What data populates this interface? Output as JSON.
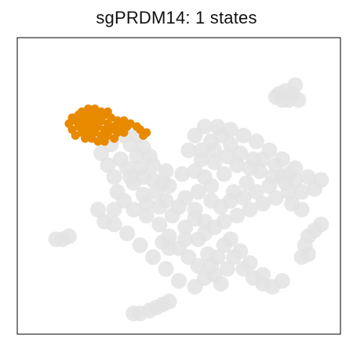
{
  "chart_data": {
    "type": "scatter",
    "title": "sgPRDM14: 1 states",
    "xlabel": "",
    "ylabel": "",
    "axes_ticks": false,
    "grid": false,
    "legend": "none",
    "colors": {
      "background_cells": "#e3e3e3",
      "highlight_cells": "#e88a00",
      "frame": "#000000"
    },
    "series": [
      {
        "name": "",
        "role": "background",
        "color": "#e3e3e3",
        "points": [
          [
            0.36,
            0.58
          ],
          [
            0.4,
            0.6
          ],
          [
            0.44,
            0.63
          ],
          [
            0.47,
            0.67
          ],
          [
            0.5,
            0.71
          ],
          [
            0.53,
            0.74
          ],
          [
            0.56,
            0.77
          ],
          [
            0.58,
            0.81
          ],
          [
            0.55,
            0.84
          ],
          [
            0.5,
            0.82
          ],
          [
            0.46,
            0.78
          ],
          [
            0.42,
            0.74
          ],
          [
            0.38,
            0.7
          ],
          [
            0.34,
            0.66
          ],
          [
            0.3,
            0.63
          ],
          [
            0.27,
            0.62
          ],
          [
            0.33,
            0.55
          ],
          [
            0.31,
            0.52
          ],
          [
            0.36,
            0.49
          ],
          [
            0.42,
            0.48
          ],
          [
            0.47,
            0.5
          ],
          [
            0.52,
            0.54
          ],
          [
            0.55,
            0.58
          ],
          [
            0.58,
            0.62
          ],
          [
            0.61,
            0.64
          ],
          [
            0.64,
            0.62
          ],
          [
            0.68,
            0.6
          ],
          [
            0.72,
            0.58
          ],
          [
            0.76,
            0.56
          ],
          [
            0.8,
            0.54
          ],
          [
            0.84,
            0.52
          ],
          [
            0.88,
            0.52
          ],
          [
            0.92,
            0.51
          ],
          [
            0.9,
            0.47
          ],
          [
            0.86,
            0.44
          ],
          [
            0.82,
            0.41
          ],
          [
            0.78,
            0.38
          ],
          [
            0.74,
            0.35
          ],
          [
            0.7,
            0.33
          ],
          [
            0.66,
            0.31
          ],
          [
            0.62,
            0.3
          ],
          [
            0.58,
            0.3
          ],
          [
            0.55,
            0.33
          ],
          [
            0.57,
            0.38
          ],
          [
            0.61,
            0.42
          ],
          [
            0.64,
            0.46
          ],
          [
            0.6,
            0.5
          ],
          [
            0.56,
            0.52
          ],
          [
            0.67,
            0.52
          ],
          [
            0.71,
            0.49
          ],
          [
            0.75,
            0.45
          ],
          [
            0.79,
            0.47
          ],
          [
            0.83,
            0.49
          ],
          [
            0.69,
            0.39
          ],
          [
            0.73,
            0.41
          ],
          [
            0.66,
            0.36
          ],
          [
            0.6,
            0.35
          ],
          [
            0.85,
            0.56
          ],
          [
            0.88,
            0.58
          ],
          [
            0.64,
            0.7
          ],
          [
            0.67,
            0.74
          ],
          [
            0.7,
            0.78
          ],
          [
            0.73,
            0.81
          ],
          [
            0.76,
            0.83
          ],
          [
            0.79,
            0.84
          ],
          [
            0.82,
            0.82
          ],
          [
            0.76,
            0.8
          ],
          [
            0.72,
            0.76
          ],
          [
            0.69,
            0.72
          ],
          [
            0.66,
            0.68
          ],
          [
            0.3,
            0.47
          ],
          [
            0.34,
            0.44
          ],
          [
            0.38,
            0.44
          ],
          [
            0.42,
            0.43
          ],
          [
            0.46,
            0.45
          ],
          [
            0.28,
            0.43
          ],
          [
            0.32,
            0.41
          ],
          [
            0.37,
            0.4
          ],
          [
            0.41,
            0.4
          ],
          [
            0.35,
            0.36
          ],
          [
            0.39,
            0.37
          ],
          [
            0.37,
            0.33
          ],
          [
            0.33,
            0.33
          ],
          [
            0.29,
            0.36
          ],
          [
            0.26,
            0.39
          ],
          [
            0.43,
            0.52
          ],
          [
            0.39,
            0.53
          ],
          [
            0.44,
            0.57
          ],
          [
            0.48,
            0.6
          ],
          [
            0.52,
            0.64
          ],
          [
            0.56,
            0.68
          ],
          [
            0.59,
            0.73
          ],
          [
            0.6,
            0.77
          ],
          [
            0.61,
            0.8
          ],
          [
            0.63,
            0.83
          ],
          [
            0.12,
            0.68
          ],
          [
            0.14,
            0.68
          ],
          [
            0.16,
            0.67
          ],
          [
            0.41,
            0.92
          ],
          [
            0.43,
            0.91
          ],
          [
            0.45,
            0.9
          ],
          [
            0.47,
            0.89
          ],
          [
            0.36,
            0.93
          ],
          [
            0.38,
            0.93
          ],
          [
            0.81,
            0.19
          ],
          [
            0.83,
            0.18
          ],
          [
            0.85,
            0.19
          ],
          [
            0.87,
            0.21
          ],
          [
            0.84,
            0.21
          ],
          [
            0.82,
            0.21
          ],
          [
            0.8,
            0.2
          ],
          [
            0.86,
            0.16
          ],
          [
            0.9,
            0.67
          ],
          [
            0.92,
            0.65
          ],
          [
            0.94,
            0.63
          ],
          [
            0.89,
            0.7
          ],
          [
            0.9,
            0.73
          ],
          [
            0.88,
            0.74
          ],
          [
            0.45,
            0.69
          ],
          [
            0.47,
            0.71
          ],
          [
            0.52,
            0.68
          ],
          [
            0.46,
            0.55
          ],
          [
            0.5,
            0.57
          ],
          [
            0.4,
            0.56
          ],
          [
            0.35,
            0.47
          ],
          [
            0.39,
            0.47
          ],
          [
            0.45,
            0.49
          ],
          [
            0.51,
            0.46
          ],
          [
            0.55,
            0.45
          ],
          [
            0.58,
            0.47
          ],
          [
            0.6,
            0.55
          ],
          [
            0.63,
            0.57
          ],
          [
            0.66,
            0.55
          ],
          [
            0.7,
            0.54
          ],
          [
            0.74,
            0.52
          ],
          [
            0.78,
            0.5
          ],
          [
            0.82,
            0.47
          ],
          [
            0.86,
            0.48
          ],
          [
            0.94,
            0.48
          ],
          [
            0.63,
            0.33
          ],
          [
            0.61,
            0.38
          ],
          [
            0.65,
            0.4
          ],
          [
            0.68,
            0.43
          ],
          [
            0.72,
            0.44
          ],
          [
            0.76,
            0.41
          ],
          [
            0.8,
            0.43
          ],
          [
            0.84,
            0.46
          ],
          [
            0.57,
            0.41
          ],
          [
            0.53,
            0.38
          ],
          [
            0.3,
            0.58
          ],
          [
            0.25,
            0.58
          ],
          [
            0.55,
            0.61
          ],
          [
            0.58,
            0.66
          ],
          [
            0.62,
            0.74
          ],
          [
            0.65,
            0.78
          ]
        ]
      },
      {
        "name": "",
        "role": "highlight",
        "color": "#e88a00",
        "points": [
          [
            0.17,
            0.27
          ],
          [
            0.19,
            0.26
          ],
          [
            0.21,
            0.26
          ],
          [
            0.23,
            0.26
          ],
          [
            0.25,
            0.26
          ],
          [
            0.27,
            0.26
          ],
          [
            0.29,
            0.27
          ],
          [
            0.31,
            0.28
          ],
          [
            0.33,
            0.28
          ],
          [
            0.35,
            0.29
          ],
          [
            0.37,
            0.3
          ],
          [
            0.16,
            0.29
          ],
          [
            0.18,
            0.28
          ],
          [
            0.2,
            0.28
          ],
          [
            0.22,
            0.28
          ],
          [
            0.24,
            0.28
          ],
          [
            0.26,
            0.28
          ],
          [
            0.28,
            0.29
          ],
          [
            0.3,
            0.3
          ],
          [
            0.32,
            0.3
          ],
          [
            0.34,
            0.3
          ],
          [
            0.17,
            0.31
          ],
          [
            0.19,
            0.3
          ],
          [
            0.21,
            0.3
          ],
          [
            0.23,
            0.3
          ],
          [
            0.25,
            0.3
          ],
          [
            0.27,
            0.31
          ],
          [
            0.29,
            0.31
          ],
          [
            0.31,
            0.32
          ],
          [
            0.33,
            0.32
          ],
          [
            0.18,
            0.33
          ],
          [
            0.2,
            0.32
          ],
          [
            0.22,
            0.32
          ],
          [
            0.24,
            0.32
          ],
          [
            0.26,
            0.33
          ],
          [
            0.28,
            0.33
          ],
          [
            0.3,
            0.34
          ],
          [
            0.21,
            0.34
          ],
          [
            0.23,
            0.34
          ],
          [
            0.25,
            0.35
          ],
          [
            0.27,
            0.35
          ],
          [
            0.38,
            0.31
          ],
          [
            0.39,
            0.33
          ],
          [
            0.4,
            0.32
          ],
          [
            0.2,
            0.25
          ],
          [
            0.22,
            0.24
          ],
          [
            0.24,
            0.24
          ],
          [
            0.26,
            0.25
          ],
          [
            0.28,
            0.25
          ],
          [
            0.18,
            0.27
          ]
        ]
      }
    ],
    "xlim": [
      0,
      1
    ],
    "ylim": [
      0,
      1
    ]
  }
}
